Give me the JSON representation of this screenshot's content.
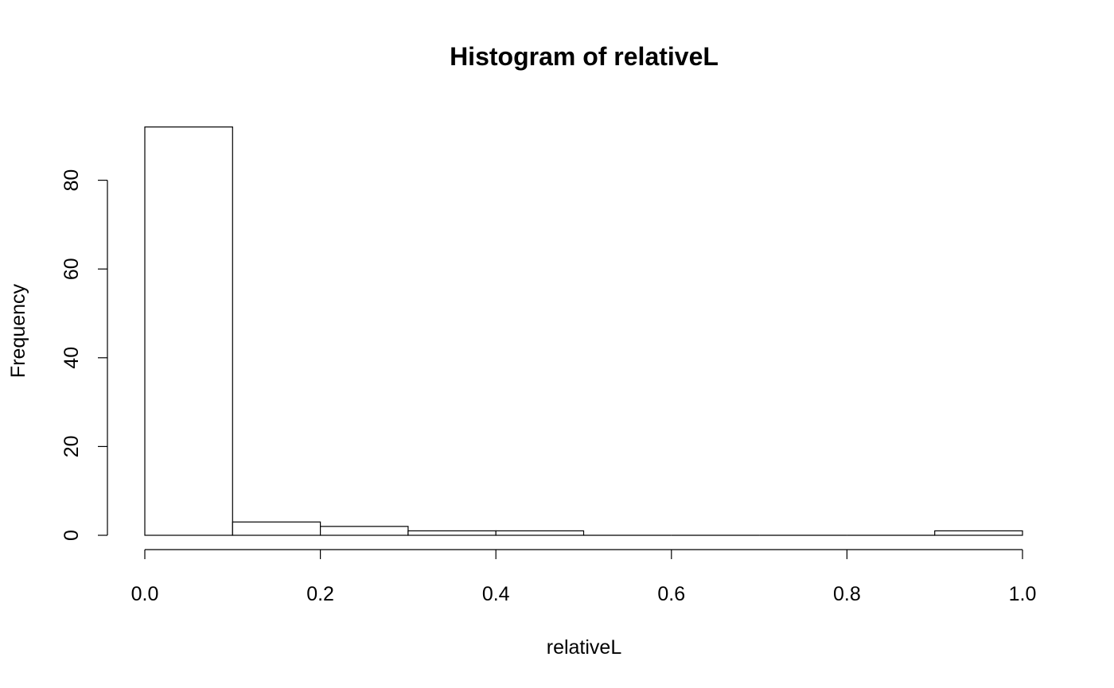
{
  "chart_data": {
    "type": "bar",
    "title": "Histogram of relativeL",
    "xlabel": "relativeL",
    "ylabel": "Frequency",
    "bins": [
      {
        "from": 0.0,
        "to": 0.1,
        "count": 92
      },
      {
        "from": 0.1,
        "to": 0.2,
        "count": 3
      },
      {
        "from": 0.2,
        "to": 0.3,
        "count": 2
      },
      {
        "from": 0.3,
        "to": 0.4,
        "count": 1
      },
      {
        "from": 0.4,
        "to": 0.5,
        "count": 1
      },
      {
        "from": 0.5,
        "to": 0.6,
        "count": 0
      },
      {
        "from": 0.6,
        "to": 0.7,
        "count": 0
      },
      {
        "from": 0.7,
        "to": 0.8,
        "count": 0
      },
      {
        "from": 0.8,
        "to": 0.9,
        "count": 0
      },
      {
        "from": 0.9,
        "to": 1.0,
        "count": 1
      }
    ],
    "xlim": [
      0,
      1
    ],
    "ylim": [
      0,
      92
    ],
    "x_ticks": [
      "0.0",
      "0.2",
      "0.4",
      "0.6",
      "0.8",
      "1.0"
    ],
    "y_ticks": [
      "0",
      "20",
      "40",
      "60",
      "80"
    ],
    "grid": false,
    "bar_fill": "#ffffff",
    "bar_stroke": "#000000"
  }
}
